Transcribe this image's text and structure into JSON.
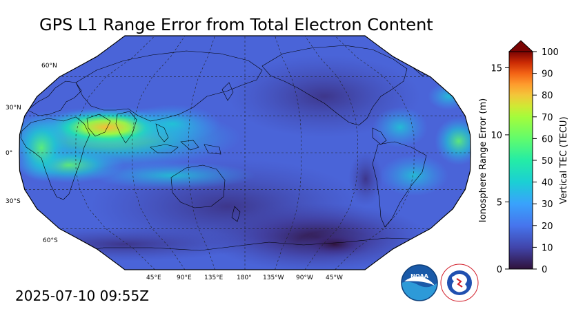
{
  "title": "GPS L1 Range Error from Total Electron Content",
  "timestamp": "2025-07-10 09:55Z",
  "map": {
    "projection": "robinson",
    "lat_labels": [
      "60°N",
      "30°N",
      "0°",
      "30°S",
      "60°S"
    ],
    "lon_labels": [
      "45°E",
      "90°E",
      "135°E",
      "180°",
      "135°W",
      "90°W",
      "45°W"
    ]
  },
  "colorbar": {
    "left_axis_label": "Ionosphere Range Error (m)",
    "right_axis_label": "Vertical TEC (TECU)",
    "left_ticks": [
      "0",
      "5",
      "10",
      "15"
    ],
    "right_ticks": [
      "0",
      "10",
      "20",
      "30",
      "40",
      "50",
      "60",
      "70",
      "80",
      "90",
      "100"
    ],
    "range_tecu": [
      0,
      100
    ],
    "range_m": [
      0,
      16.2
    ],
    "extend": "max"
  },
  "colors": {
    "low": "#30123b",
    "mid_low": "#4662d7",
    "mid": "#1ae4b6",
    "mid_high": "#f9ba38",
    "high": "#7a0403"
  },
  "logos": {
    "noaa": "NOAA",
    "nws": "NATIONAL WEATHER SERVICE"
  }
}
